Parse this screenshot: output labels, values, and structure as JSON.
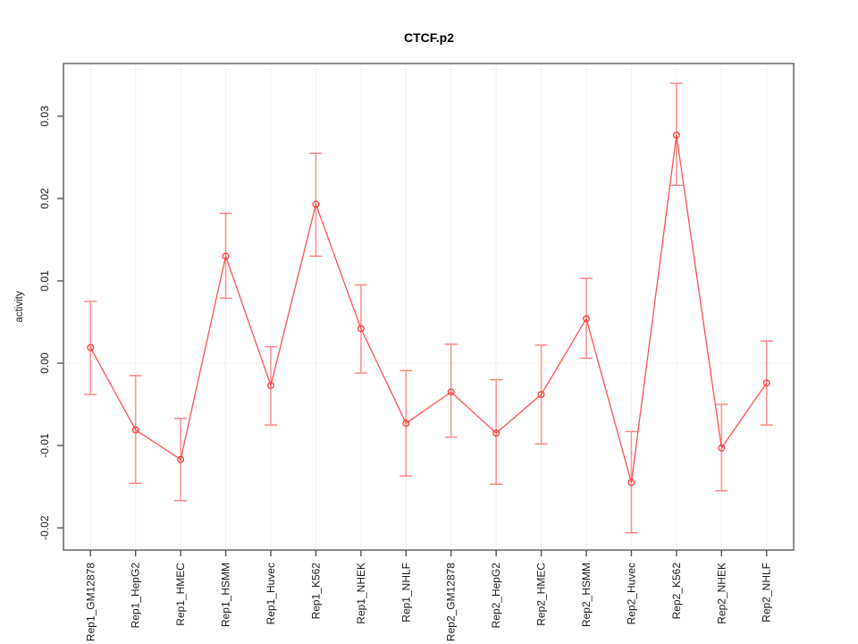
{
  "window": {
    "background_color": "#ffffff"
  },
  "chart_data": {
    "type": "line",
    "title": "CTCF.p2",
    "xlabel": "",
    "ylabel": "activity",
    "legend": "none",
    "grid": "vertical-dotted-gridlines-and-dotted-zero-line",
    "categories": [
      "Rep1_GM12878",
      "Rep1_HepG2",
      "Rep1_HMEC",
      "Rep1_HSMM",
      "Rep1_Huvec",
      "Rep1_K562",
      "Rep1_NHEK",
      "Rep1_NHLF",
      "Rep2_GM12878",
      "Rep2_HepG2",
      "Rep2_HMEC",
      "Rep2_HSMM",
      "Rep2_Huvec",
      "Rep2_K562",
      "Rep2_NHEK",
      "Rep2_NHLF"
    ],
    "series": [
      {
        "name": "activity",
        "marker": "open-circle",
        "values": [
          0.0019,
          -0.0081,
          -0.0117,
          0.013,
          -0.0027,
          0.0193,
          0.0042,
          -0.0073,
          -0.0035,
          -0.0085,
          -0.0038,
          0.0054,
          -0.0145,
          0.0277,
          -0.0103,
          -0.0024
        ],
        "lower": [
          -0.0038,
          -0.0146,
          -0.0167,
          0.0079,
          -0.0075,
          0.013,
          -0.0012,
          -0.0137,
          -0.009,
          -0.0147,
          -0.0098,
          0.0006,
          -0.0206,
          0.0216,
          -0.0155,
          -0.0075
        ],
        "upper": [
          0.0075,
          -0.0015,
          -0.0067,
          0.0182,
          0.002,
          0.0255,
          0.0095,
          -0.0009,
          0.0023,
          -0.002,
          0.0022,
          0.0103,
          -0.0083,
          0.034,
          -0.005,
          0.0027
        ]
      }
    ],
    "y_ticks": {
      "values": [
        0.03,
        0.02,
        0.01,
        0.0,
        -0.01,
        -0.02
      ],
      "labels": [
        "0.03",
        "0.02",
        "0.01",
        "0.00",
        "-0.01",
        "-0.02"
      ]
    },
    "ylim": [
      -0.0227,
      0.0364
    ],
    "zero_line": 0.0,
    "colors": {
      "line": "#ff5050",
      "marker": "#ff3838",
      "error_bar": "#ff9494",
      "error_cap": "#ff8080",
      "grid": "#d8d8d8",
      "zero_line_color": "#dcdcdc",
      "axis_box": "#6f6f6f",
      "tick": "#555555",
      "text": "#1a1a1a",
      "background": "#ffffff"
    }
  }
}
